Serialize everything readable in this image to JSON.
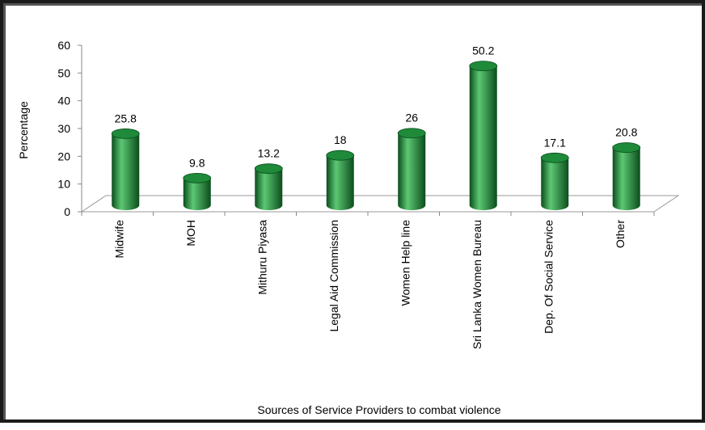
{
  "chart_data": {
    "type": "bar",
    "categories": [
      "Midwife",
      "MOH",
      "Mithuru Piyasa",
      "Legal Aid Commission",
      "Women Help line",
      "Sri Lanka Women Bureau",
      "Dep. Of Social Service",
      "Other"
    ],
    "values": [
      25.8,
      9.8,
      13.2,
      18,
      26,
      50.2,
      17.1,
      20.8
    ],
    "data_labels": [
      "25.8",
      "9.8",
      "13.2",
      "18",
      "26",
      "50.2",
      "17.1",
      "20.8"
    ],
    "title": "",
    "xlabel": "Sources of Service Providers to combat violence",
    "ylabel": "Percentage",
    "ylim": [
      0,
      60
    ],
    "yticks": [
      "0",
      "10",
      "20",
      "30",
      "40",
      "50",
      "60"
    ],
    "bar_color": "#1e8a3a",
    "bar_dark": "#0b4d1c",
    "bar_light": "#5cc873",
    "grid": false,
    "legend": "none",
    "style": "3d-cylinder"
  }
}
